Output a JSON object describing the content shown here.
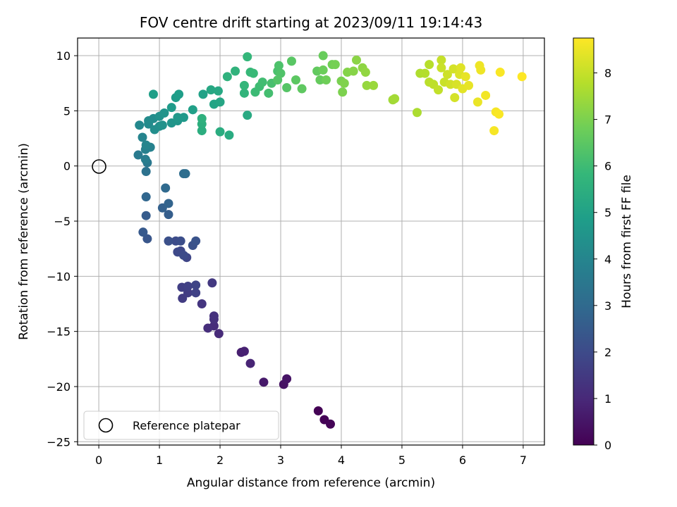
{
  "chart_data": {
    "type": "scatter",
    "title": "FOV centre drift starting at 2023/09/11 19:14:43",
    "xlabel": "Angular distance from reference (arcmin)",
    "ylabel": "Rotation from reference (arcmin)",
    "xlim": [
      -0.35,
      7.35
    ],
    "ylim": [
      -25.3,
      11.6
    ],
    "xticks": [
      0,
      1,
      2,
      3,
      4,
      5,
      6,
      7
    ],
    "yticks": [
      -25,
      -20,
      -15,
      -10,
      -5,
      0,
      5,
      10
    ],
    "grid": true,
    "colorbar": {
      "label": "Hours from first FF file",
      "range": [
        0,
        8.75
      ],
      "ticks": [
        0,
        1,
        2,
        3,
        4,
        5,
        6,
        7,
        8
      ],
      "colormap": "viridis"
    },
    "legend": {
      "position": "bottom-left",
      "entries": [
        "Reference platepar"
      ]
    },
    "reference_point": {
      "name": "Reference platepar",
      "x": 0,
      "y": 0
    },
    "colors": {
      "viridis": [
        "#440154",
        "#482878",
        "#3e4989",
        "#31688e",
        "#26828e",
        "#1f9e89",
        "#35b779",
        "#6ece58",
        "#b5de2b",
        "#fde725"
      ],
      "grid": "#b0b0b0"
    },
    "points": [
      [
        3.62,
        -22.2,
        0.02
      ],
      [
        3.72,
        -23.0,
        0.05
      ],
      [
        3.82,
        -23.4,
        0.08
      ],
      [
        3.05,
        -19.8,
        0.4
      ],
      [
        3.1,
        -19.3,
        0.45
      ],
      [
        2.72,
        -19.6,
        0.6
      ],
      [
        2.35,
        -16.9,
        0.75
      ],
      [
        2.4,
        -16.8,
        0.8
      ],
      [
        2.5,
        -17.9,
        0.9
      ],
      [
        1.98,
        -15.2,
        1.05
      ],
      [
        1.9,
        -14.5,
        1.1
      ],
      [
        1.8,
        -14.7,
        1.15
      ],
      [
        1.9,
        -13.9,
        1.2
      ],
      [
        1.9,
        -13.6,
        1.25
      ],
      [
        1.7,
        -12.5,
        1.35
      ],
      [
        1.87,
        -10.6,
        1.45
      ],
      [
        1.38,
        -12.0,
        1.55
      ],
      [
        1.47,
        -11.5,
        1.6
      ],
      [
        1.37,
        -11.0,
        1.65
      ],
      [
        1.47,
        -10.9,
        1.7
      ],
      [
        1.6,
        -11.5,
        1.75
      ],
      [
        1.6,
        -10.8,
        1.8
      ],
      [
        1.45,
        -8.3,
        1.85
      ],
      [
        1.35,
        -7.7,
        1.9
      ],
      [
        1.3,
        -7.8,
        1.95
      ],
      [
        1.4,
        -8.1,
        2.0
      ],
      [
        1.27,
        -6.8,
        2.05
      ],
      [
        1.35,
        -6.8,
        2.1
      ],
      [
        1.15,
        -6.8,
        2.15
      ],
      [
        1.55,
        -7.2,
        2.2
      ],
      [
        1.6,
        -6.8,
        2.25
      ],
      [
        0.8,
        -6.6,
        2.35
      ],
      [
        0.73,
        -6.0,
        2.45
      ],
      [
        0.78,
        -4.5,
        2.55
      ],
      [
        1.15,
        -4.4,
        2.6
      ],
      [
        1.05,
        -3.8,
        2.7
      ],
      [
        1.15,
        -3.4,
        2.8
      ],
      [
        0.78,
        -2.8,
        2.9
      ],
      [
        1.1,
        -2.0,
        3.0
      ],
      [
        1.4,
        -0.7,
        3.1
      ],
      [
        1.43,
        -0.7,
        3.15
      ],
      [
        0.78,
        -0.5,
        3.3
      ],
      [
        0.8,
        0.3,
        3.5
      ],
      [
        0.65,
        1.0,
        3.6
      ],
      [
        0.77,
        0.6,
        3.7
      ],
      [
        0.77,
        1.5,
        3.8
      ],
      [
        0.85,
        1.7,
        3.85
      ],
      [
        0.72,
        2.6,
        3.95
      ],
      [
        0.78,
        1.9,
        4.0
      ],
      [
        0.67,
        3.7,
        4.1
      ],
      [
        0.82,
        3.8,
        4.15
      ],
      [
        0.82,
        4.1,
        4.2
      ],
      [
        0.9,
        4.3,
        4.25
      ],
      [
        0.92,
        3.3,
        4.3
      ],
      [
        1.0,
        3.6,
        4.35
      ],
      [
        1.0,
        4.5,
        4.4
      ],
      [
        1.05,
        3.7,
        4.45
      ],
      [
        1.08,
        4.8,
        4.5
      ],
      [
        1.2,
        3.9,
        4.55
      ],
      [
        1.3,
        4.1,
        4.6
      ],
      [
        1.3,
        4.4,
        4.65
      ],
      [
        1.4,
        4.4,
        4.7
      ],
      [
        1.2,
        5.3,
        4.75
      ],
      [
        1.27,
        6.2,
        4.8
      ],
      [
        1.32,
        6.5,
        4.85
      ],
      [
        0.9,
        6.5,
        4.9
      ],
      [
        1.55,
        5.1,
        4.95
      ],
      [
        1.72,
        6.5,
        5.0
      ],
      [
        1.9,
        5.6,
        5.1
      ],
      [
        2.0,
        5.8,
        5.15
      ],
      [
        1.85,
        6.9,
        5.2
      ],
      [
        1.97,
        6.8,
        5.25
      ],
      [
        2.45,
        4.6,
        5.3
      ],
      [
        2.15,
        2.8,
        5.35
      ],
      [
        2.0,
        3.1,
        5.4
      ],
      [
        1.7,
        3.2,
        5.45
      ],
      [
        1.7,
        3.8,
        5.5
      ],
      [
        1.7,
        4.3,
        5.55
      ],
      [
        2.12,
        8.1,
        5.6
      ],
      [
        2.25,
        8.6,
        5.65
      ],
      [
        2.4,
        6.6,
        5.7
      ],
      [
        2.4,
        7.3,
        5.75
      ],
      [
        2.45,
        9.9,
        5.8
      ],
      [
        2.5,
        8.5,
        5.85
      ],
      [
        2.55,
        8.4,
        5.9
      ],
      [
        2.58,
        6.7,
        5.95
      ],
      [
        2.65,
        7.2,
        6.0
      ],
      [
        2.7,
        7.6,
        6.05
      ],
      [
        2.8,
        6.6,
        6.1
      ],
      [
        2.85,
        7.5,
        6.15
      ],
      [
        2.95,
        8.6,
        6.2
      ],
      [
        2.97,
        9.1,
        6.25
      ],
      [
        3.0,
        8.4,
        6.3
      ],
      [
        2.95,
        7.8,
        6.35
      ],
      [
        3.1,
        7.1,
        6.4
      ],
      [
        3.18,
        9.5,
        6.45
      ],
      [
        3.25,
        7.8,
        6.5
      ],
      [
        3.35,
        7.0,
        6.55
      ],
      [
        3.6,
        8.6,
        6.6
      ],
      [
        3.65,
        7.8,
        6.65
      ],
      [
        3.7,
        10.0,
        6.7
      ],
      [
        3.7,
        8.7,
        6.75
      ],
      [
        3.75,
        7.8,
        6.8
      ],
      [
        3.85,
        9.2,
        6.85
      ],
      [
        3.9,
        9.2,
        6.9
      ],
      [
        4.0,
        7.7,
        6.95
      ],
      [
        4.02,
        6.7,
        7.0
      ],
      [
        4.05,
        7.5,
        7.05
      ],
      [
        4.1,
        8.5,
        7.1
      ],
      [
        4.2,
        8.6,
        7.15
      ],
      [
        4.25,
        9.6,
        7.2
      ],
      [
        4.35,
        8.9,
        7.25
      ],
      [
        4.4,
        8.5,
        7.3
      ],
      [
        4.42,
        7.3,
        7.35
      ],
      [
        4.53,
        7.3,
        7.4
      ],
      [
        4.85,
        6.0,
        7.5
      ],
      [
        4.88,
        6.1,
        7.55
      ],
      [
        5.25,
        4.85,
        7.65
      ],
      [
        5.3,
        8.4,
        7.7
      ],
      [
        5.38,
        8.4,
        7.75
      ],
      [
        5.45,
        9.2,
        7.8
      ],
      [
        5.45,
        7.6,
        7.85
      ],
      [
        5.52,
        7.4,
        7.9
      ],
      [
        5.6,
        6.9,
        7.95
      ],
      [
        5.65,
        9.6,
        8.0
      ],
      [
        5.65,
        8.9,
        8.05
      ],
      [
        5.7,
        7.6,
        8.05
      ],
      [
        5.75,
        8.3,
        8.1
      ],
      [
        5.8,
        7.4,
        8.15
      ],
      [
        5.85,
        8.8,
        8.2
      ],
      [
        5.87,
        6.2,
        8.2
      ],
      [
        5.9,
        7.4,
        8.25
      ],
      [
        5.95,
        8.3,
        8.3
      ],
      [
        5.97,
        8.9,
        8.35
      ],
      [
        6.0,
        7.0,
        8.4
      ],
      [
        6.05,
        8.1,
        8.45
      ],
      [
        6.1,
        7.3,
        8.45
      ],
      [
        6.25,
        5.8,
        8.5
      ],
      [
        6.28,
        9.1,
        8.55
      ],
      [
        6.3,
        8.7,
        8.55
      ],
      [
        6.38,
        6.4,
        8.6
      ],
      [
        6.52,
        3.2,
        8.65
      ],
      [
        6.55,
        4.9,
        8.65
      ],
      [
        6.6,
        4.7,
        8.7
      ],
      [
        6.62,
        8.5,
        8.7
      ],
      [
        6.98,
        8.1,
        8.75
      ]
    ]
  }
}
